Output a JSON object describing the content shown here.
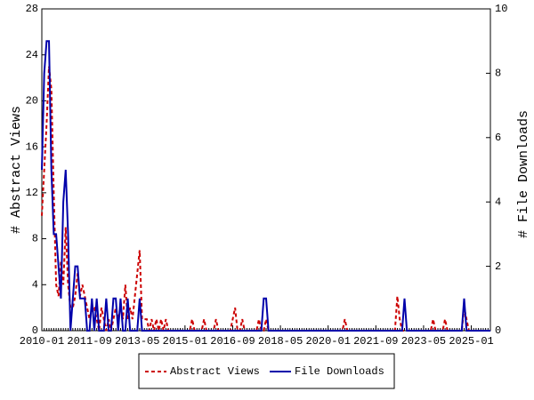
{
  "chart_data": {
    "type": "line",
    "x": [
      "2010-01",
      "2010-02",
      "2010-03",
      "2010-04",
      "2010-05",
      "2010-06",
      "2010-07",
      "2010-08",
      "2010-09",
      "2010-10",
      "2010-11",
      "2010-12",
      "2011-01",
      "2011-02",
      "2011-03",
      "2011-04",
      "2011-05",
      "2011-06",
      "2011-07",
      "2011-08",
      "2011-09",
      "2011-10",
      "2011-11",
      "2011-12",
      "2012-01",
      "2012-02",
      "2012-03",
      "2012-04",
      "2012-05",
      "2012-06",
      "2012-07",
      "2012-08",
      "2012-09",
      "2012-10",
      "2012-11",
      "2012-12",
      "2013-01",
      "2013-02",
      "2013-03",
      "2013-04",
      "2013-05",
      "2013-06",
      "2013-07",
      "2013-08",
      "2013-09",
      "2013-10",
      "2013-11",
      "2013-12",
      "2014-01",
      "2014-02",
      "2014-03",
      "2014-04",
      "2014-05",
      "2014-06",
      "2014-07",
      "2014-08",
      "2014-09",
      "2014-10",
      "2014-11",
      "2014-12",
      "2015-01",
      "2015-02",
      "2015-03",
      "2015-04",
      "2015-05",
      "2015-06",
      "2015-07",
      "2015-08",
      "2015-09",
      "2015-10",
      "2015-11",
      "2015-12",
      "2016-01",
      "2016-02",
      "2016-03",
      "2016-04",
      "2016-05",
      "2016-06",
      "2016-07",
      "2016-08",
      "2016-09",
      "2016-10",
      "2016-11",
      "2016-12",
      "2017-01",
      "2017-02",
      "2017-03",
      "2017-04",
      "2017-05",
      "2017-06",
      "2017-07",
      "2017-08",
      "2017-09",
      "2017-10",
      "2017-11",
      "2017-12",
      "2018-01",
      "2018-02",
      "2018-03",
      "2018-04",
      "2018-05",
      "2018-06",
      "2018-07",
      "2018-08",
      "2018-09",
      "2018-10",
      "2018-11",
      "2018-12",
      "2019-01",
      "2019-02",
      "2019-03",
      "2019-04",
      "2019-05",
      "2019-06",
      "2019-07",
      "2019-08",
      "2019-09",
      "2019-10",
      "2019-11",
      "2019-12",
      "2020-01",
      "2020-02",
      "2020-03",
      "2020-04",
      "2020-05",
      "2020-06",
      "2020-07",
      "2020-08",
      "2020-09",
      "2020-10",
      "2020-11",
      "2020-12",
      "2021-01",
      "2021-02",
      "2021-03",
      "2021-04",
      "2021-05",
      "2021-06",
      "2021-07",
      "2021-08",
      "2021-09",
      "2021-10",
      "2021-11",
      "2021-12",
      "2022-01",
      "2022-02",
      "2022-03",
      "2022-04",
      "2022-05",
      "2022-06",
      "2022-07",
      "2022-08",
      "2022-09",
      "2022-10",
      "2022-11",
      "2022-12",
      "2023-01",
      "2023-02",
      "2023-03",
      "2023-04",
      "2023-05",
      "2023-06",
      "2023-07",
      "2023-08",
      "2023-09",
      "2023-10",
      "2023-11",
      "2023-12",
      "2024-01",
      "2024-02",
      "2024-03",
      "2024-04",
      "2024-05",
      "2024-06",
      "2024-07",
      "2024-08",
      "2024-09",
      "2024-10",
      "2024-11",
      "2024-12",
      "2025-01",
      "2025-02",
      "2025-03",
      "2025-04",
      "2025-05",
      "2025-06",
      "2025-07",
      "2025-08",
      "2025-09"
    ],
    "xticks": [
      "2010-01",
      "2011-09",
      "2013-05",
      "2015-01",
      "2016-09",
      "2018-05",
      "2020-01",
      "2021-09",
      "2023-05",
      "2025-01"
    ],
    "ylabel": "# Abstract Views",
    "y2label": "# File Downloads",
    "ylim": [
      0,
      28
    ],
    "yticks": [
      0,
      4,
      8,
      12,
      16,
      20,
      24,
      28
    ],
    "y2lim": [
      0,
      10
    ],
    "y2ticks": [
      0,
      2,
      4,
      6,
      8,
      10
    ],
    "legend": "bottom",
    "series": [
      {
        "name": "Abstract Views",
        "color": "#cc0000",
        "linestyle": "dashed",
        "axis": "y",
        "values": [
          10,
          14,
          18,
          23,
          21,
          12,
          4,
          3,
          6,
          4,
          9,
          4,
          2,
          2,
          3,
          5,
          3,
          4,
          3,
          2,
          1,
          2,
          2,
          1,
          0,
          2,
          1,
          0,
          1,
          0,
          1,
          2,
          1,
          2,
          1,
          4,
          1,
          2,
          1,
          3,
          5,
          7,
          1,
          1,
          1,
          0,
          1,
          0,
          1,
          0,
          1,
          0,
          1,
          0,
          0,
          0,
          0,
          0,
          0,
          0,
          0,
          0,
          0,
          1,
          0,
          0,
          0,
          0,
          1,
          0,
          0,
          0,
          0,
          1,
          0,
          0,
          0,
          0,
          0,
          0,
          1,
          2,
          0,
          0,
          1,
          0,
          0,
          0,
          0,
          0,
          0,
          1,
          0,
          0,
          1,
          0,
          0,
          0,
          0,
          0,
          0,
          0,
          0,
          0,
          0,
          0,
          0,
          0,
          0,
          0,
          0,
          0,
          0,
          0,
          0,
          0,
          0,
          0,
          0,
          0,
          0,
          0,
          0,
          0,
          0,
          0,
          0,
          1,
          0,
          0,
          0,
          0,
          0,
          0,
          0,
          0,
          0,
          0,
          0,
          0,
          0,
          0,
          0,
          0,
          0,
          0,
          0,
          0,
          0,
          3,
          1,
          0,
          0,
          0,
          0,
          0,
          0,
          0,
          0,
          0,
          0,
          0,
          0,
          0,
          1,
          0,
          0,
          0,
          0,
          1,
          0,
          0,
          0,
          0,
          0,
          0,
          0,
          2,
          1,
          0,
          0,
          0,
          0,
          0,
          0,
          0,
          0,
          0,
          0
        ]
      },
      {
        "name": "File Downloads",
        "color": "#0000aa",
        "linestyle": "solid",
        "axis": "y2",
        "values": [
          5,
          8,
          9,
          9,
          5,
          3,
          3,
          2,
          1,
          4,
          5,
          3,
          0,
          1,
          2,
          2,
          1,
          1,
          1,
          0,
          0,
          1,
          0,
          1,
          0,
          0,
          0,
          1,
          0,
          0,
          1,
          1,
          0,
          1,
          0,
          0,
          1,
          0,
          0,
          0,
          0,
          1,
          0,
          0,
          0,
          0,
          0,
          0,
          0,
          0,
          0,
          0,
          0,
          0,
          0,
          0,
          0,
          0,
          0,
          0,
          0,
          0,
          0,
          0,
          0,
          0,
          0,
          0,
          0,
          0,
          0,
          0,
          0,
          0,
          0,
          0,
          0,
          0,
          0,
          0,
          0,
          0,
          0,
          0,
          0,
          0,
          0,
          0,
          0,
          0,
          0,
          0,
          0,
          1,
          1,
          0,
          0,
          0,
          0,
          0,
          0,
          0,
          0,
          0,
          0,
          0,
          0,
          0,
          0,
          0,
          0,
          0,
          0,
          0,
          0,
          0,
          0,
          0,
          0,
          0,
          0,
          0,
          0,
          0,
          0,
          0,
          0,
          0,
          0,
          0,
          0,
          0,
          0,
          0,
          0,
          0,
          0,
          0,
          0,
          0,
          0,
          0,
          0,
          0,
          0,
          0,
          0,
          0,
          0,
          0,
          0,
          0,
          1,
          0,
          0,
          0,
          0,
          0,
          0,
          0,
          0,
          0,
          0,
          0,
          0,
          0,
          0,
          0,
          0,
          0,
          0,
          0,
          0,
          0,
          0,
          0,
          0,
          1,
          0,
          0,
          0,
          0,
          0,
          0,
          0,
          0,
          0,
          0,
          0
        ]
      }
    ]
  }
}
